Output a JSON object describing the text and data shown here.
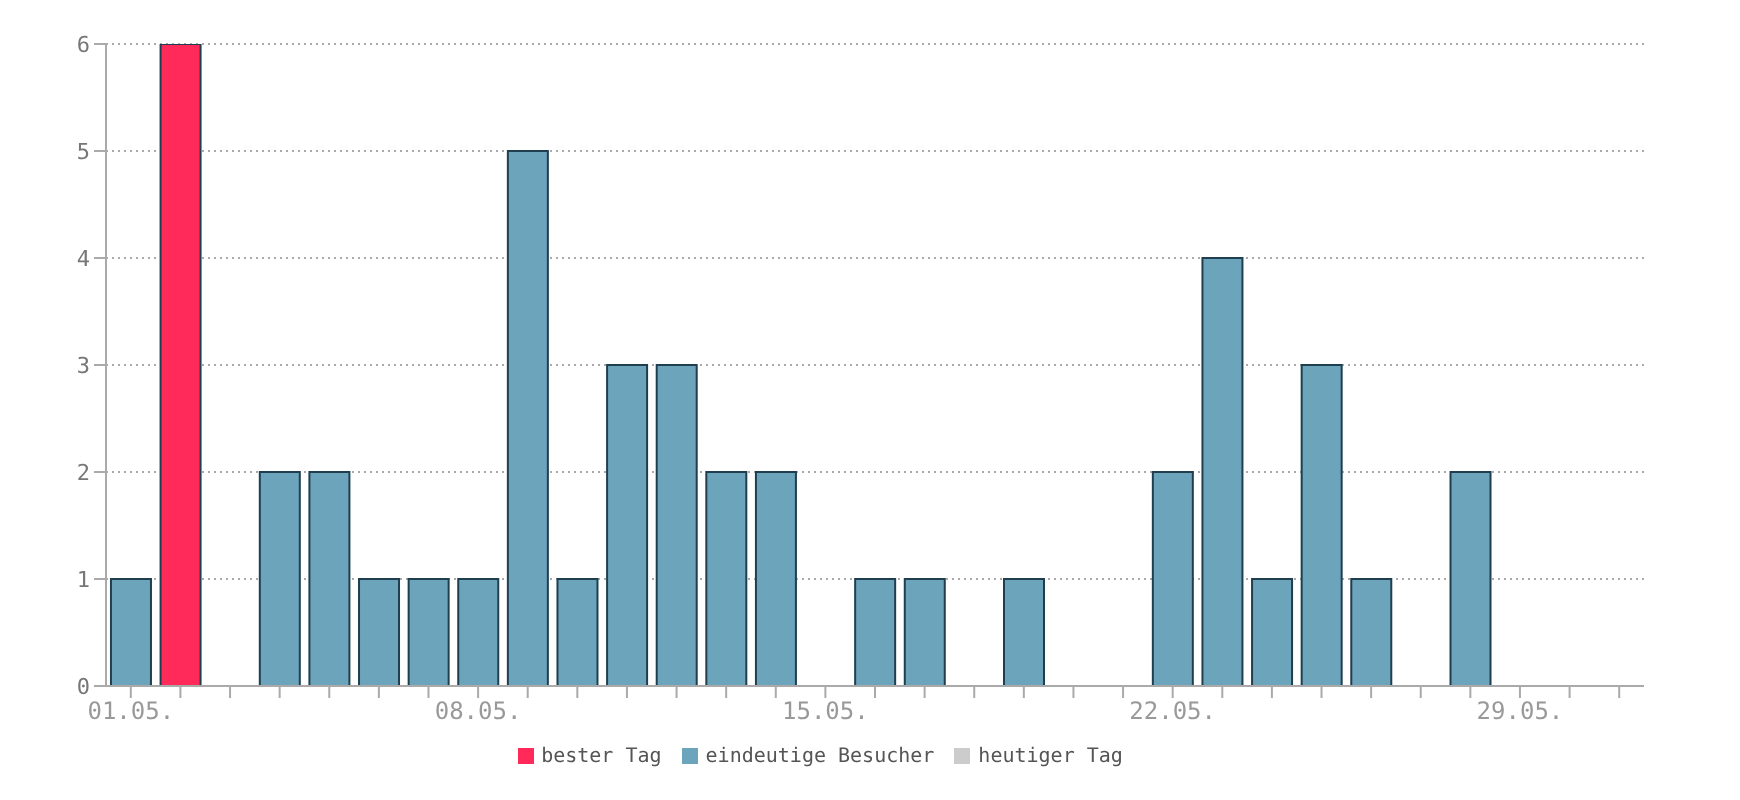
{
  "chart_data": {
    "type": "bar",
    "stacked": true,
    "categories": [
      "01.05.",
      null,
      null,
      null,
      null,
      null,
      null,
      "08.05.",
      null,
      null,
      null,
      null,
      null,
      null,
      "15.05.",
      null,
      null,
      null,
      null,
      null,
      null,
      "22.05.",
      null,
      null,
      null,
      null,
      null,
      null,
      "29.05.",
      null,
      null
    ],
    "series": [
      {
        "name": "eindeutige Besucher",
        "color": "#6ca4bc",
        "values": [
          1,
          null,
          0,
          2,
          2,
          1,
          1,
          1,
          5,
          1,
          3,
          3,
          2,
          2,
          0,
          1,
          1,
          0,
          1,
          0,
          0,
          2,
          4,
          1,
          3,
          1,
          0,
          2,
          0,
          0,
          0
        ]
      },
      {
        "name": "bester Tag",
        "color": "#ff2a5a",
        "values": [
          null,
          6,
          null,
          null,
          null,
          null,
          null,
          null,
          null,
          null,
          null,
          null,
          null,
          null,
          null,
          null,
          null,
          null,
          null,
          null,
          null,
          null,
          null,
          null,
          null,
          null,
          null,
          null,
          null,
          null,
          null
        ]
      },
      {
        "name": "heutiger Tag",
        "color": "#cccccc",
        "values": [
          null,
          null,
          null,
          null,
          null,
          null,
          null,
          null,
          null,
          null,
          null,
          null,
          null,
          null,
          null,
          null,
          null,
          null,
          null,
          null,
          null,
          null,
          null,
          null,
          null,
          null,
          null,
          null,
          null,
          null,
          null
        ]
      }
    ],
    "ylim": [
      0,
      6
    ],
    "yticks": [
      0,
      1,
      2,
      3,
      4,
      5,
      6
    ],
    "grid": "y",
    "legend": "bottom"
  }
}
